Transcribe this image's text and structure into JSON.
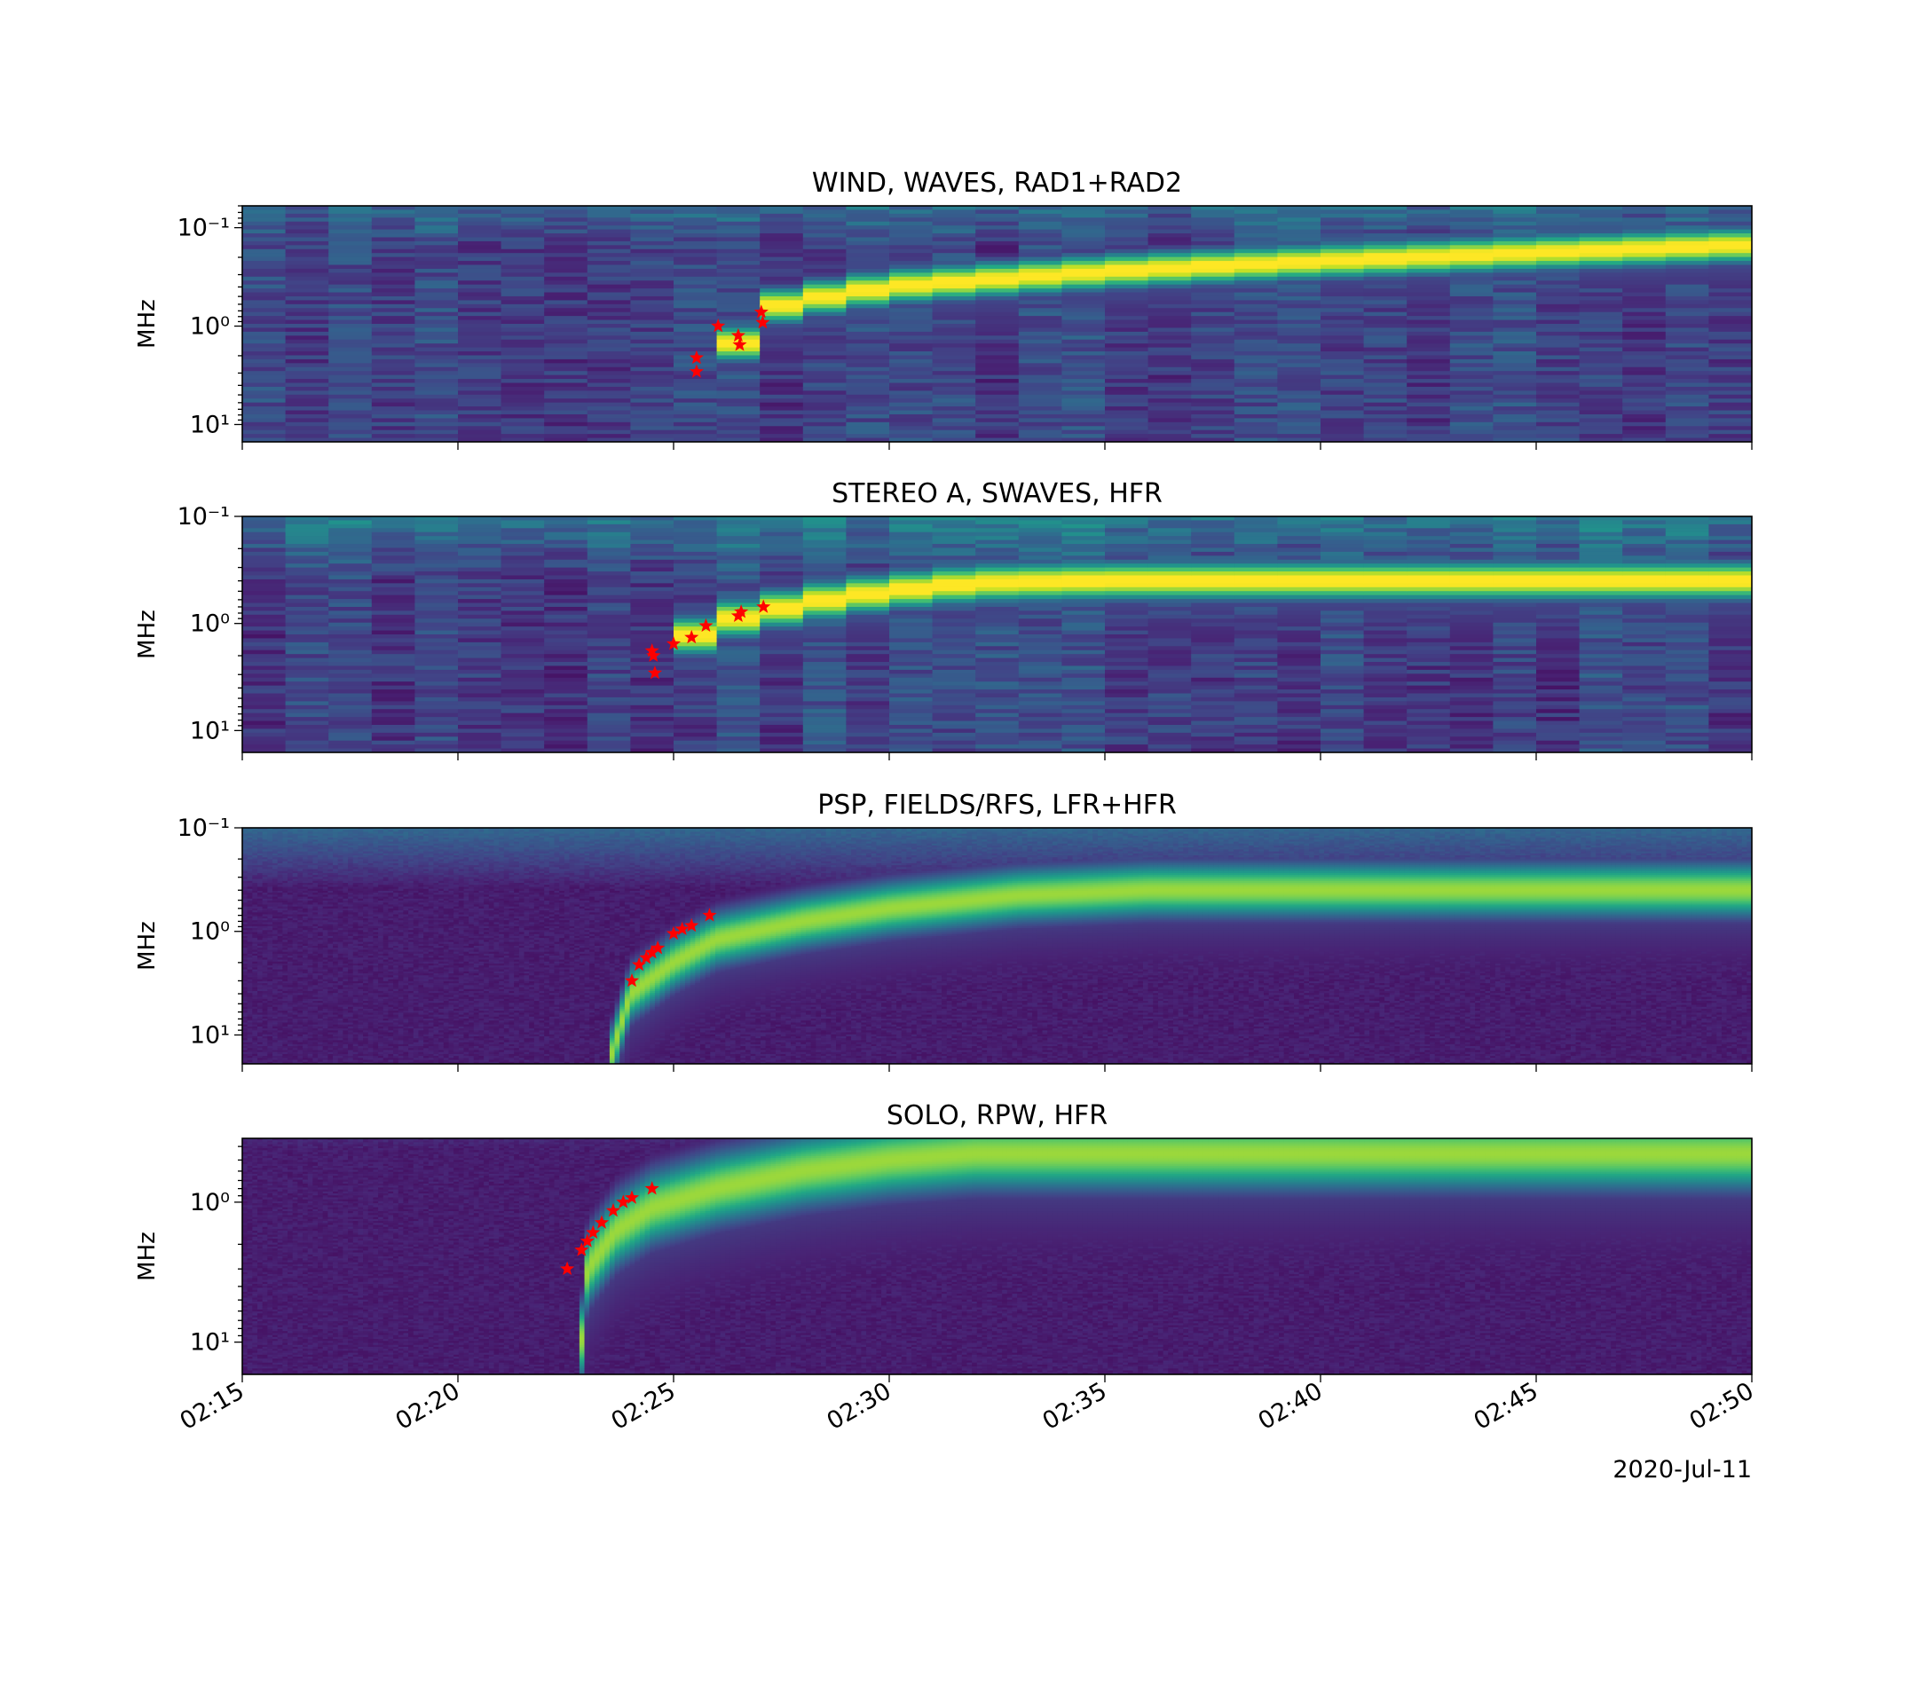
{
  "figure": {
    "date_label": "2020-Jul-11"
  },
  "chart_data": [
    {
      "type": "heatmap",
      "title": "WIND, WAVES, RAD1+RAD2",
      "ylabel": "MHz",
      "yscale": "log",
      "y_inverted": true,
      "ylim": [
        15,
        0.06
      ],
      "yticks": [
        {
          "value": 0.1,
          "label": "10⁻¹"
        },
        {
          "value": 1,
          "label": "10⁰"
        },
        {
          "value": 10,
          "label": "10¹"
        }
      ],
      "xlim": [
        "02:15",
        "02:50"
      ],
      "style": "blocky",
      "burst": {
        "track": [
          [
            "02:25:30",
            4
          ],
          [
            "02:26:30",
            1.5
          ],
          [
            "02:27",
            0.7
          ],
          [
            "02:28",
            0.55
          ],
          [
            "02:30",
            0.4
          ],
          [
            "02:35",
            0.28
          ],
          [
            "02:40",
            0.22
          ],
          [
            "02:45",
            0.18
          ],
          [
            "02:50",
            0.15
          ]
        ],
        "onset": "02:25:30",
        "low_freq_cutoff": 0.15
      },
      "markers": {
        "symbol": "star",
        "color": "#ff0000",
        "points": [
          [
            "02:25:32",
            2.1
          ],
          [
            "02:25:32",
            2.9
          ],
          [
            "02:26:02",
            1.0
          ],
          [
            "02:26:30",
            1.25
          ],
          [
            "02:26:32",
            1.55
          ],
          [
            "02:27:02",
            0.72
          ],
          [
            "02:27:04",
            0.92
          ]
        ]
      }
    },
    {
      "type": "heatmap",
      "title": "STEREO A, SWAVES, HFR",
      "ylabel": "MHz",
      "yscale": "log",
      "y_inverted": true,
      "ylim": [
        16,
        0.1
      ],
      "yticks": [
        {
          "value": 0.1,
          "label": "10⁻¹"
        },
        {
          "value": 1,
          "label": "10⁰"
        },
        {
          "value": 10,
          "label": "10¹"
        }
      ],
      "xlim": [
        "02:15",
        "02:50"
      ],
      "style": "blocky",
      "burst": {
        "track": [
          [
            "02:24:30",
            2.5
          ],
          [
            "02:25:30",
            1.3
          ],
          [
            "02:26:30",
            0.9
          ],
          [
            "02:28",
            0.65
          ],
          [
            "02:30",
            0.5
          ],
          [
            "02:32",
            0.42
          ],
          [
            "02:35",
            0.4
          ],
          [
            "02:38",
            0.4
          ]
        ],
        "onset": "02:24:30",
        "low_freq_cutoff": 0.38
      },
      "markers": {
        "symbol": "star",
        "color": "#ff0000",
        "points": [
          [
            "02:24:30",
            1.8
          ],
          [
            "02:24:32",
            2.0
          ],
          [
            "02:24:34",
            2.9
          ],
          [
            "02:25:00",
            1.55
          ],
          [
            "02:25:25",
            1.35
          ],
          [
            "02:25:45",
            1.05
          ],
          [
            "02:26:30",
            0.85
          ],
          [
            "02:26:34",
            0.78
          ],
          [
            "02:27:05",
            0.7
          ]
        ]
      }
    },
    {
      "type": "heatmap",
      "title": "PSP, FIELDS/RFS, LFR+HFR",
      "ylabel": "MHz",
      "yscale": "log",
      "y_inverted": true,
      "ylim": [
        19,
        0.1
      ],
      "yticks": [
        {
          "value": 0.1,
          "label": "10⁻¹"
        },
        {
          "value": 1,
          "label": "10⁰"
        },
        {
          "value": 10,
          "label": "10¹"
        }
      ],
      "xlim": [
        "02:15",
        "02:50"
      ],
      "style": "smooth",
      "burst": {
        "track": [
          [
            "02:23:30",
            19
          ],
          [
            "02:24",
            4
          ],
          [
            "02:25",
            2
          ],
          [
            "02:26",
            1.2
          ],
          [
            "02:28",
            0.8
          ],
          [
            "02:30",
            0.6
          ],
          [
            "02:33",
            0.45
          ],
          [
            "02:36",
            0.4
          ],
          [
            "02:40",
            0.4
          ]
        ],
        "onset": "02:23:20",
        "low_freq_cutoff": 0.38
      },
      "markers": {
        "symbol": "star",
        "color": "#ff0000",
        "points": [
          [
            "02:24:02",
            3.0
          ],
          [
            "02:24:12",
            2.1
          ],
          [
            "02:24:22",
            1.8
          ],
          [
            "02:24:30",
            1.6
          ],
          [
            "02:24:38",
            1.45
          ],
          [
            "02:25:00",
            1.05
          ],
          [
            "02:25:12",
            0.95
          ],
          [
            "02:25:25",
            0.88
          ],
          [
            "02:25:50",
            0.7
          ]
        ]
      }
    },
    {
      "type": "heatmap",
      "title": "SOLO, RPW, HFR",
      "ylabel": "MHz",
      "yscale": "log",
      "y_inverted": true,
      "ylim": [
        17,
        0.35
      ],
      "yticks": [
        {
          "value": 1,
          "label": "10⁰"
        },
        {
          "value": 10,
          "label": "10¹"
        }
      ],
      "xticks": [
        "02:15",
        "02:20",
        "02:25",
        "02:30",
        "02:35",
        "02:40",
        "02:45",
        "02:50"
      ],
      "xlim": [
        "02:15",
        "02:50"
      ],
      "style": "smooth",
      "burst": {
        "track": [
          [
            "02:22:50",
            14
          ],
          [
            "02:23",
            3
          ],
          [
            "02:23:40",
            1.6
          ],
          [
            "02:24:30",
            1.1
          ],
          [
            "02:26",
            0.8
          ],
          [
            "02:28",
            0.6
          ],
          [
            "02:30",
            0.5
          ],
          [
            "02:32",
            0.45
          ]
        ],
        "onset": "02:22:30",
        "low_freq_cutoff": 0.42
      },
      "markers": {
        "symbol": "star",
        "color": "#ff0000",
        "points": [
          [
            "02:22:32",
            3.0
          ],
          [
            "02:22:52",
            2.2
          ],
          [
            "02:23:00",
            1.9
          ],
          [
            "02:23:08",
            1.65
          ],
          [
            "02:23:20",
            1.4
          ],
          [
            "02:23:36",
            1.15
          ],
          [
            "02:23:50",
            1.0
          ],
          [
            "02:24:02",
            0.93
          ],
          [
            "02:24:30",
            0.8
          ]
        ]
      }
    }
  ]
}
